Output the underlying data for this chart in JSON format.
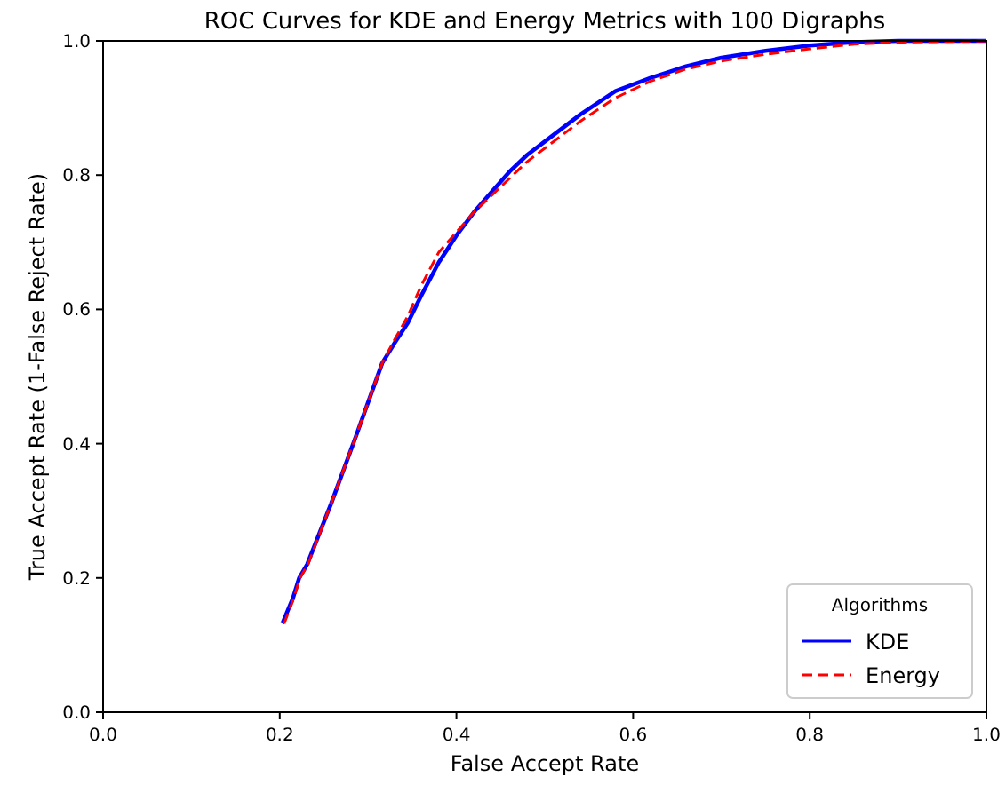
{
  "chart_data": {
    "type": "line",
    "title": "ROC Curves for KDE and Energy Metrics with 100 Digraphs",
    "xlabel": "False Accept Rate",
    "ylabel": "True Accept Rate (1-False Reject Rate)",
    "legend_title": "Algorithms",
    "legend": "bottom right",
    "grid": false,
    "xlim": [
      0,
      1
    ],
    "ylim": [
      0,
      1
    ],
    "xticks": [
      {
        "value": 0,
        "label": "0.0"
      },
      {
        "value": 0.2,
        "label": "0.2"
      },
      {
        "value": 0.4,
        "label": "0.4"
      },
      {
        "value": 0.6,
        "label": "0.6"
      },
      {
        "value": 0.8,
        "label": "0.8"
      },
      {
        "value": 1,
        "label": "1.0"
      }
    ],
    "yticks": [
      {
        "value": 0,
        "label": "0.0"
      },
      {
        "value": 0.2,
        "label": "0.2"
      },
      {
        "value": 0.4,
        "label": "0.4"
      },
      {
        "value": 0.6,
        "label": "0.6"
      },
      {
        "value": 0.8,
        "label": "0.8"
      },
      {
        "value": 1,
        "label": "1.0"
      }
    ],
    "series": [
      {
        "name": "KDE",
        "color": "#0000ff",
        "line_style": "solid",
        "x": [
          0.203,
          0.215,
          0.222,
          0.231,
          0.258,
          0.286,
          0.316,
          0.33,
          0.345,
          0.36,
          0.38,
          0.4,
          0.42,
          0.44,
          0.46,
          0.48,
          0.5,
          0.54,
          0.58,
          0.62,
          0.66,
          0.7,
          0.75,
          0.8,
          0.85,
          0.9,
          1.0
        ],
        "values": [
          0.132,
          0.17,
          0.2,
          0.22,
          0.31,
          0.41,
          0.52,
          0.55,
          0.58,
          0.62,
          0.67,
          0.71,
          0.745,
          0.775,
          0.805,
          0.83,
          0.85,
          0.89,
          0.925,
          0.945,
          0.962,
          0.975,
          0.985,
          0.993,
          0.998,
          1.0,
          1.0
        ]
      },
      {
        "name": "Energy",
        "color": "#ff0000",
        "line_style": "dashed",
        "x": [
          0.205,
          0.216,
          0.223,
          0.232,
          0.258,
          0.286,
          0.316,
          0.33,
          0.345,
          0.36,
          0.38,
          0.4,
          0.42,
          0.44,
          0.46,
          0.48,
          0.5,
          0.54,
          0.58,
          0.62,
          0.66,
          0.7,
          0.75,
          0.8,
          0.85,
          0.9,
          1.0
        ],
        "values": [
          0.132,
          0.17,
          0.2,
          0.22,
          0.31,
          0.41,
          0.52,
          0.555,
          0.59,
          0.635,
          0.685,
          0.715,
          0.745,
          0.77,
          0.795,
          0.82,
          0.84,
          0.88,
          0.915,
          0.94,
          0.958,
          0.97,
          0.98,
          0.988,
          0.995,
          0.998,
          1.0
        ]
      }
    ]
  }
}
